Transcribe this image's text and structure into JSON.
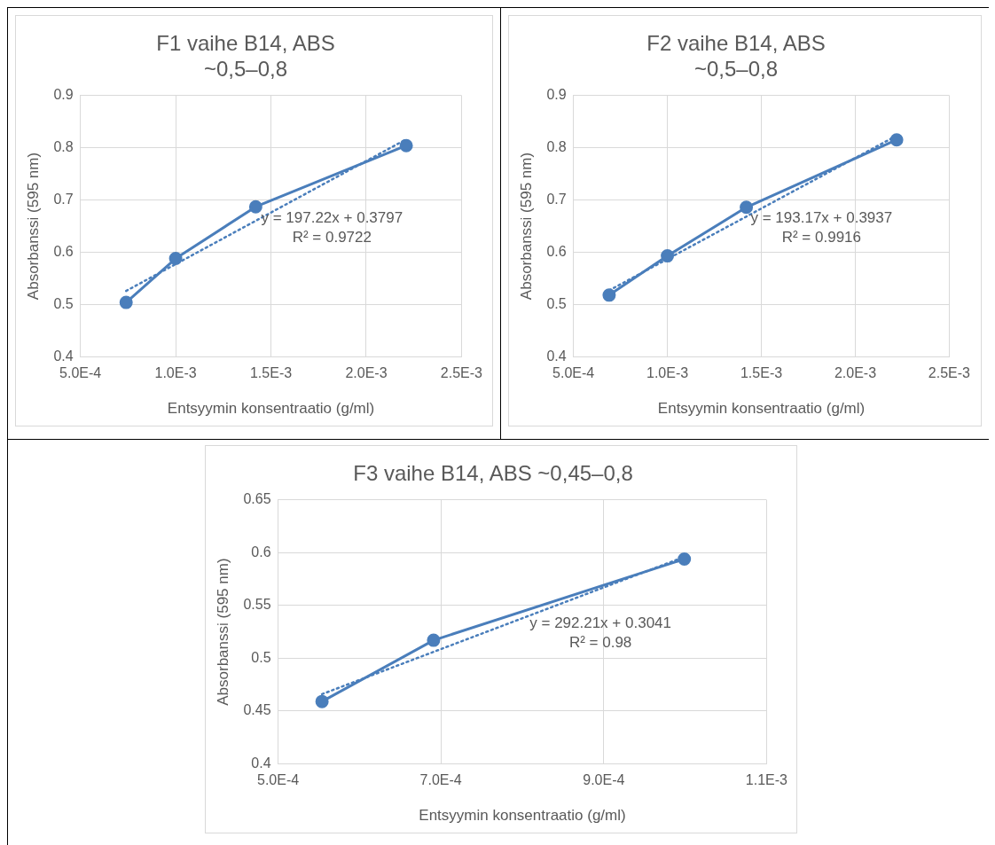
{
  "chart_data": [
    {
      "type": "line",
      "title": "F1 vaihe B14, ABS ~0,5–0,8",
      "xlabel": "Entsyymin konsentraatio (g/ml)",
      "ylabel": "Absorbanssi (595 nm)",
      "series": [
        {
          "color": "#4a7ebb",
          "marker": "circle",
          "line_style": "solid",
          "x": [
            0.00074,
            0.001,
            0.00142,
            0.00221
          ],
          "values": [
            0.504,
            0.588,
            0.687,
            0.804
          ]
        },
        {
          "color": "#4a7ebb",
          "marker": "none",
          "line_style": "dotted",
          "x": [
            0.00074,
            0.00221
          ],
          "values": [
            0.526,
            0.816
          ]
        }
      ],
      "xlim": [
        0.0005,
        0.0025
      ],
      "xticks": [
        {
          "value": 0.0005,
          "label": "5.0E-4"
        },
        {
          "value": 0.001,
          "label": "1.0E-3"
        },
        {
          "value": 0.0015,
          "label": "1.5E-3"
        },
        {
          "value": 0.002,
          "label": "2.0E-3"
        },
        {
          "value": 0.0025,
          "label": "2.5E-3"
        }
      ],
      "ylim": [
        0.4,
        0.9
      ],
      "yticks": [
        0.4,
        0.5,
        0.6,
        0.7,
        0.8,
        0.9
      ],
      "grid": true,
      "legend": false,
      "annotations": [
        "y = 197.22x + 0.3797",
        "R² = 0.9722"
      ]
    },
    {
      "type": "line",
      "title": "F2 vaihe B14, ABS ~0,5–0,8",
      "xlabel": "Entsyymin konsentraatio (g/ml)",
      "ylabel": "Absorbanssi (595 nm)",
      "series": [
        {
          "color": "#4a7ebb",
          "marker": "circle",
          "line_style": "solid",
          "x": [
            0.00069,
            0.001,
            0.00142,
            0.00222
          ],
          "values": [
            0.518,
            0.593,
            0.686,
            0.815
          ]
        },
        {
          "color": "#4a7ebb",
          "marker": "none",
          "line_style": "dotted",
          "x": [
            0.00069,
            0.00222
          ],
          "values": [
            0.527,
            0.823
          ]
        }
      ],
      "xlim": [
        0.0005,
        0.0025
      ],
      "xticks": [
        {
          "value": 0.0005,
          "label": "5.0E-4"
        },
        {
          "value": 0.001,
          "label": "1.0E-3"
        },
        {
          "value": 0.0015,
          "label": "1.5E-3"
        },
        {
          "value": 0.002,
          "label": "2.0E-3"
        },
        {
          "value": 0.0025,
          "label": "2.5E-3"
        }
      ],
      "ylim": [
        0.4,
        0.9
      ],
      "yticks": [
        0.4,
        0.5,
        0.6,
        0.7,
        0.8,
        0.9
      ],
      "grid": true,
      "legend": false,
      "annotations": [
        "y = 193.17x + 0.3937",
        "R² = 0.9916"
      ]
    },
    {
      "type": "line",
      "title": "F3 vaihe B14, ABS ~0,45–0,8",
      "xlabel": "Entsyymin konsentraatio (g/ml)",
      "ylabel": "Absorbanssi (595 nm)",
      "series": [
        {
          "color": "#4a7ebb",
          "marker": "circle",
          "line_style": "solid",
          "x": [
            0.000554,
            0.000691,
            0.000999
          ],
          "values": [
            0.459,
            0.517,
            0.594
          ]
        },
        {
          "color": "#4a7ebb",
          "marker": "none",
          "line_style": "dotted",
          "x": [
            0.000554,
            0.000999
          ],
          "values": [
            0.466,
            0.596
          ]
        }
      ],
      "xlim": [
        0.0005,
        0.0011
      ],
      "xticks": [
        {
          "value": 0.0005,
          "label": "5.0E-4"
        },
        {
          "value": 0.0007,
          "label": "7.0E-4"
        },
        {
          "value": 0.0009,
          "label": "9.0E-4"
        },
        {
          "value": 0.0011,
          "label": "1.1E-3"
        }
      ],
      "ylim": [
        0.4,
        0.65
      ],
      "yticks": [
        0.4,
        0.45,
        0.5,
        0.55,
        0.6,
        0.65
      ],
      "grid": true,
      "legend": false,
      "annotations": [
        "y = 292.21x + 0.3041",
        "R² = 0.98"
      ]
    }
  ]
}
